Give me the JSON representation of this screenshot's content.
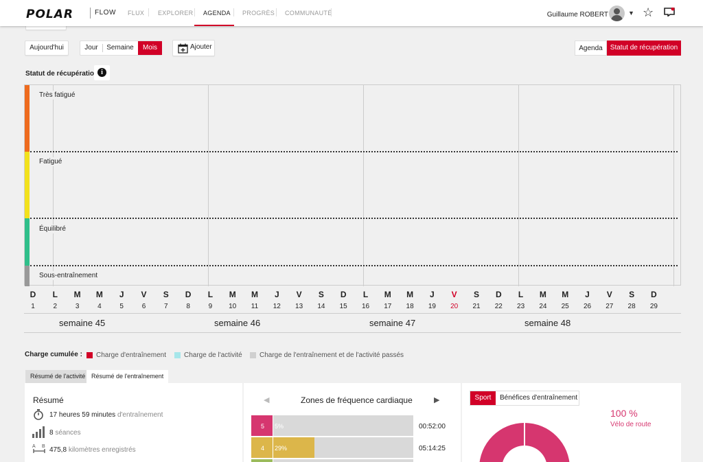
{
  "nav": {
    "brand": "POLAR",
    "product": "FLOW",
    "items": [
      "FLUX",
      "EXPLORER",
      "AGENDA",
      "PROGRÈS",
      "COMMUNAUTÉ"
    ],
    "active_item": "AGENDA",
    "user_name": "Guillaume ROBERT",
    "icons": [
      "user-avatar",
      "chevron-down-icon",
      "star-icon",
      "notification-icon"
    ],
    "accent_color": "#d10027"
  },
  "toolbar": {
    "today_label": "Aujourd'hui",
    "view_day": "Jour",
    "view_week": "Semaine",
    "view_month": "Mois",
    "add_label": "Ajouter",
    "right_agenda": "Agenda",
    "right_recovery": "Statut de récupération"
  },
  "recovery": {
    "title": "Statut de récupération",
    "zones": [
      {
        "label": "Très fatigué",
        "color": "#ee6b1e"
      },
      {
        "label": "Fatigué",
        "color": "#f2e11c"
      },
      {
        "label": "Équilibré",
        "color": "#2fbf8a"
      },
      {
        "label": "Sous-entraînement",
        "color": "#999999"
      }
    ],
    "days": [
      {
        "l": "D",
        "n": "1"
      },
      {
        "l": "L",
        "n": "2"
      },
      {
        "l": "M",
        "n": "3"
      },
      {
        "l": "M",
        "n": "4"
      },
      {
        "l": "J",
        "n": "5"
      },
      {
        "l": "V",
        "n": "6"
      },
      {
        "l": "S",
        "n": "7"
      },
      {
        "l": "D",
        "n": "8"
      },
      {
        "l": "L",
        "n": "9"
      },
      {
        "l": "M",
        "n": "10"
      },
      {
        "l": "M",
        "n": "11"
      },
      {
        "l": "J",
        "n": "12"
      },
      {
        "l": "V",
        "n": "13"
      },
      {
        "l": "S",
        "n": "14"
      },
      {
        "l": "D",
        "n": "15"
      },
      {
        "l": "L",
        "n": "16"
      },
      {
        "l": "M",
        "n": "17"
      },
      {
        "l": "M",
        "n": "18"
      },
      {
        "l": "J",
        "n": "19"
      },
      {
        "l": "V",
        "n": "20"
      },
      {
        "l": "S",
        "n": "21"
      },
      {
        "l": "D",
        "n": "22"
      },
      {
        "l": "L",
        "n": "23"
      },
      {
        "l": "M",
        "n": "24"
      },
      {
        "l": "M",
        "n": "25"
      },
      {
        "l": "J",
        "n": "26"
      },
      {
        "l": "V",
        "n": "27"
      },
      {
        "l": "S",
        "n": "28"
      },
      {
        "l": "D",
        "n": "29"
      }
    ],
    "today": "20",
    "weeks": [
      "semaine 45",
      "semaine 46",
      "semaine 47",
      "semaine 48"
    ]
  },
  "legend": {
    "title": "Charge cumulée :",
    "items": [
      {
        "label": "Charge d'entraînement",
        "color": "#d10027"
      },
      {
        "label": "Charge de l'activité",
        "color": "#a6e6ea"
      },
      {
        "label": "Charge de l'entraînement et de l'activité passés",
        "color": "#d0d0d0"
      }
    ]
  },
  "tabs": {
    "activity": "Résumé de l'activité",
    "training": "Résumé de l'entraînement"
  },
  "summary": {
    "title": "Résumé",
    "duration_value": "17 heures 59 minutes",
    "duration_unit": "d'entraînement",
    "sessions_value": "8",
    "sessions_unit": "séances",
    "distance_value": "475,8",
    "distance_unit": "kilomètres enregistrés"
  },
  "hr_zones": {
    "title": "Zones de fréquence cardiaque",
    "zones": [
      {
        "zone": "5",
        "pct": "5%",
        "time": "00:52:00",
        "color": "#d6366f",
        "fraction": 0.13
      },
      {
        "zone": "4",
        "pct": "29%",
        "time": "05:14:25",
        "color": "#dcb64a",
        "fraction": 0.39
      }
    ],
    "zone3_color": "#9bbb5c"
  },
  "sport": {
    "tab_sport": "Sport",
    "tab_benefits": "Bénéfices d'entraînement",
    "percent": "100 %",
    "sport_name": "Vélo de route",
    "pie_color": "#d6366f"
  }
}
